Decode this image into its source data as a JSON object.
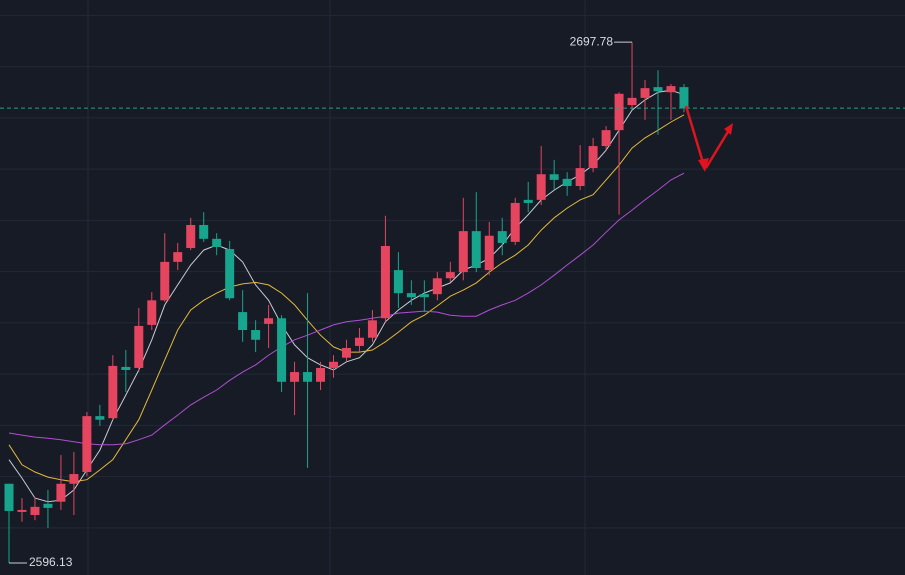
{
  "chart_data": {
    "type": "candlestick",
    "up_color": "#e5455f",
    "down_color": "#17a58e",
    "ylim": [
      2593.8,
      2706.0
    ],
    "yticks": [
      2603,
      2613,
      2623,
      2633,
      2643,
      2653,
      2663,
      2673,
      2683,
      2693,
      2703
    ],
    "grid": true,
    "open": [
      2611.6,
      2606.1,
      2605.5,
      2607.7,
      2608.1,
      2611.6,
      2613.9,
      2624.8,
      2624.4,
      2634.4,
      2634.2,
      2642.6,
      2647.4,
      2654.9,
      2657.6,
      2662.1,
      2659.4,
      2657.4,
      2645.1,
      2641.6,
      2642.8,
      2643.9,
      2631.5,
      2633.4,
      2631.5,
      2634.2,
      2636.2,
      2638.5,
      2640.1,
      2643.9,
      2653.3,
      2648.8,
      2648.6,
      2648.6,
      2651.7,
      2652.9,
      2660.9,
      2653.3,
      2660.9,
      2658.8,
      2667.0,
      2667.0,
      2672.0,
      2671.1,
      2669.7,
      2673.2,
      2677.5,
      2680.6,
      2685.5,
      2686.9,
      2689.0,
      2688.0,
      2689.0
    ],
    "high": [
      2611.6,
      2608.8,
      2609.0,
      2610.4,
      2617.2,
      2617.8,
      2625.6,
      2627.0,
      2636.7,
      2637.7,
      2645.9,
      2649.0,
      2660.5,
      2658.6,
      2663.5,
      2664.6,
      2660.5,
      2659.0,
      2649.4,
      2643.5,
      2646.5,
      2644.5,
      2635.4,
      2648.8,
      2635.4,
      2636.7,
      2639.7,
      2642.0,
      2645.5,
      2663.9,
      2656.8,
      2651.3,
      2651.3,
      2652.9,
      2654.9,
      2667.4,
      2668.5,
      2662.7,
      2663.5,
      2667.4,
      2670.5,
      2677.5,
      2674.8,
      2672.4,
      2677.7,
      2679.1,
      2681.4,
      2688.0,
      2697.78,
      2690.4,
      2692.3,
      2689.6,
      2689.6
    ],
    "low": [
      2596.13,
      2604.2,
      2604.5,
      2603.0,
      2606.5,
      2605.5,
      2613.1,
      2622.9,
      2624.1,
      2629.5,
      2633.4,
      2641.6,
      2647.1,
      2653.3,
      2657.2,
      2658.8,
      2656.2,
      2647.4,
      2639.3,
      2637.3,
      2638.1,
      2629.5,
      2625.0,
      2614.7,
      2629.9,
      2632.3,
      2635.4,
      2637.3,
      2639.3,
      2643.2,
      2645.9,
      2646.5,
      2645.1,
      2647.4,
      2650.9,
      2651.3,
      2652.9,
      2652.3,
      2656.2,
      2658.2,
      2664.6,
      2666.0,
      2668.9,
      2667.8,
      2668.9,
      2672.4,
      2676.7,
      2664.1,
      2684.5,
      2682.6,
      2679.7,
      2682.6,
      2684.1
    ],
    "close": [
      2606.3,
      2606.5,
      2607.1,
      2606.9,
      2611.6,
      2613.5,
      2624.8,
      2624.1,
      2634.6,
      2633.8,
      2642.4,
      2647.4,
      2654.9,
      2656.8,
      2662.1,
      2659.4,
      2657.8,
      2647.8,
      2641.6,
      2639.7,
      2643.9,
      2631.5,
      2633.4,
      2631.5,
      2634.2,
      2635.4,
      2638.1,
      2640.1,
      2643.5,
      2658.0,
      2648.8,
      2648.0,
      2648.0,
      2651.7,
      2652.9,
      2660.9,
      2653.7,
      2660.0,
      2658.6,
      2666.4,
      2666.4,
      2672.0,
      2670.9,
      2669.7,
      2673.2,
      2677.5,
      2680.6,
      2687.7,
      2686.9,
      2688.8,
      2688.2,
      2689.2,
      2684.9
    ],
    "lines": [
      {
        "color": "#c9ccd3",
        "values": [
          2616.3,
          2612.7,
          2608.8,
          2608.1,
          2608.4,
          2610.4,
          2614.3,
          2618.2,
          2624.1,
          2628.9,
          2633.8,
          2639.7,
          2646.5,
          2650.4,
          2654.3,
          2657.2,
          2658.2,
          2657.2,
          2654.9,
          2650.4,
          2647.4,
          2642.6,
          2638.7,
          2636.2,
          2634.8,
          2633.8,
          2635.4,
          2636.2,
          2638.7,
          2643.2,
          2645.5,
          2647.4,
          2648.8,
          2649.8,
          2650.8,
          2653.3,
          2654.3,
          2655.6,
          2658.2,
          2661.5,
          2664.1,
          2667.0,
          2668.9,
          2670.5,
          2671.9,
          2673.8,
          2676.7,
          2680.6,
          2684.5,
          2686.5,
          2688.0,
          2688.4,
          2687.5
        ]
      },
      {
        "color": "#e2b93b",
        "values": [
          2619.2,
          2615.3,
          2613.9,
          2612.9,
          2612.4,
          2612.0,
          2612.4,
          2614.3,
          2616.3,
          2620.2,
          2624.1,
          2629.9,
          2635.8,
          2641.6,
          2645.5,
          2647.4,
          2648.8,
          2650.0,
          2650.6,
          2650.9,
          2650.4,
          2648.8,
          2646.5,
          2643.5,
          2640.6,
          2638.3,
          2637.3,
          2637.3,
          2637.7,
          2639.3,
          2641.2,
          2643.2,
          2644.5,
          2646.3,
          2648.2,
          2649.4,
          2650.8,
          2652.9,
          2654.7,
          2656.2,
          2658.2,
          2661.1,
          2663.5,
          2665.4,
          2667.0,
          2668.0,
          2670.9,
          2673.8,
          2677.1,
          2679.1,
          2680.6,
          2682.2,
          2683.6
        ]
      },
      {
        "color": "#b04fd0",
        "values": [
          2621.5,
          2621.1,
          2620.7,
          2620.5,
          2620.2,
          2619.8,
          2619.4,
          2619.2,
          2619.2,
          2619.4,
          2620.2,
          2621.1,
          2623.1,
          2625.0,
          2627.0,
          2628.5,
          2629.9,
          2631.8,
          2633.4,
          2634.8,
          2636.7,
          2638.3,
          2639.7,
          2640.6,
          2641.6,
          2642.6,
          2643.2,
          2643.5,
          2643.9,
          2644.3,
          2644.9,
          2645.1,
          2645.3,
          2645.1,
          2644.5,
          2644.3,
          2644.3,
          2645.5,
          2646.5,
          2647.4,
          2648.8,
          2650.4,
          2652.3,
          2654.3,
          2656.2,
          2658.2,
          2660.7,
          2663.1,
          2665.0,
          2667.0,
          2668.9,
          2670.9,
          2672.2
        ]
      }
    ]
  }
}
